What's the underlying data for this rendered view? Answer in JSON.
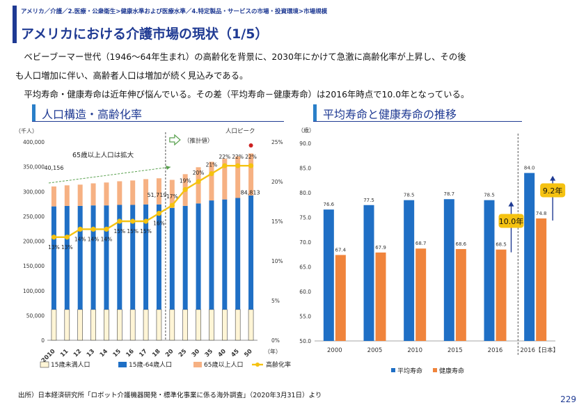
{
  "breadcrumb": "アメリカ／介護／2.医療・公衆衛生>健康水準および医療水準／4.特定製品・サービスの市場・投資環境>市場規模",
  "title": "アメリカにおける介護市場の現状（1/5）",
  "paragraphs": [
    "　ベビーブーマー世代（1946～64年生まれ）の高齢化を背景に、2030年にかけて急激に高齢化率が上昇し、その後",
    "も人口増加に伴い、高齢者人口は増加が続く見込みである。",
    "　平均寿命・健康寿命は近年伸び悩んでいる。その差（平均寿命－健康寿命）は2016年時点で10.0年となっている。"
  ],
  "section_left": "人口構造・高齢化率",
  "section_right": "平均寿命と健康寿命の推移",
  "colors": {
    "navy": "#1f3a93",
    "blue": "#1f6fc5",
    "orange": "#f0843c",
    "lightorange": "#f6b183",
    "cream": "#fff5d6",
    "yellow": "#f5c211",
    "red": "#cc1f1f"
  },
  "chart_data": [
    {
      "type": "bar",
      "subtype": "stacked-bar-with-line",
      "title": "人口構造・高齢化率",
      "y_left_label": "（千人）",
      "y_left_range": [
        0,
        400000
      ],
      "y_left_ticks": [
        "0",
        "50,000",
        "100,000",
        "150,000",
        "200,000",
        "250,000",
        "300,000",
        "350,000",
        "400,000"
      ],
      "y_right_range": [
        0,
        25
      ],
      "y_right_ticks": [
        "0%",
        "5%",
        "10%",
        "15%",
        "20%",
        "25%"
      ],
      "x_unit_label": "（年）",
      "categories": [
        "2010",
        "11",
        "12",
        "13",
        "14",
        "15",
        "16",
        "17",
        "18",
        "20",
        "25",
        "30",
        "35",
        "40",
        "45",
        "50"
      ],
      "series": [
        {
          "name": "15歳未満人口",
          "values": [
            62000,
            62000,
            62000,
            62000,
            62000,
            62000,
            62000,
            62000,
            62000,
            62000,
            62000,
            62000,
            62000,
            62000,
            62000,
            62000
          ]
        },
        {
          "name": "15歳-64歳人口",
          "values": [
            208000,
            209000,
            209000,
            210000,
            210000,
            211000,
            211000,
            212000,
            212000,
            205000,
            209000,
            214000,
            220000,
            222000,
            225000,
            230000
          ]
        },
        {
          "name": "65歳以上人口",
          "values": [
            40156,
            41500,
            42900,
            44500,
            46200,
            47700,
            49300,
            51000,
            52700,
            56500,
            64000,
            73000,
            78000,
            82000,
            84000,
            84813
          ]
        }
      ],
      "line": {
        "name": "高齢化率",
        "values": [
          13,
          13,
          14,
          14,
          14,
          15,
          15,
          15,
          16,
          17,
          19,
          20,
          21,
          22,
          22,
          22
        ]
      },
      "point_labels": [
        "13%",
        "13%",
        "14%",
        "14%",
        "14%",
        "15%",
        "15%",
        "15%",
        "16%",
        "17%",
        "19%",
        "20%",
        "21%",
        "22%",
        "22%",
        "22%"
      ],
      "annotations": {
        "first_elderly": "40,156",
        "peak_label": "人口ピーク",
        "peak_value": "84,813",
        "intermediate_value": "51,719",
        "growth_note": "65歳以上人口は拡大",
        "estimate_note": "（推計値）"
      },
      "legend": [
        "15歳未満人口",
        "15歳-64歳人口",
        "65歳以上人口",
        "高齢化率"
      ]
    },
    {
      "type": "bar",
      "title": "平均寿命と健康寿命の推移",
      "y_label": "（歳）",
      "y_range": [
        50,
        90
      ],
      "y_ticks": [
        "50.0",
        "55.0",
        "60.0",
        "65.0",
        "70.0",
        "75.0",
        "80.0",
        "85.0",
        "90.0"
      ],
      "categories": [
        "2000",
        "2005",
        "2010",
        "2015",
        "2016",
        "2016【日本】"
      ],
      "series": [
        {
          "name": "平均寿命",
          "values": [
            76.6,
            77.5,
            78.5,
            78.7,
            78.5,
            84.0
          ]
        },
        {
          "name": "健康寿命",
          "values": [
            67.4,
            67.9,
            68.7,
            68.6,
            68.5,
            74.8
          ]
        }
      ],
      "value_labels": {
        "平均寿命": [
          "76.6",
          "77.5",
          "78.5",
          "78.7",
          "78.5",
          "84.0"
        ],
        "健康寿命": [
          "67.4",
          "67.9",
          "68.7",
          "68.6",
          "68.5",
          "74.8"
        ]
      },
      "annotations": {
        "gap_us": "10.0年",
        "gap_japan": "9.2年"
      },
      "legend": [
        "平均寿命",
        "健康寿命"
      ]
    }
  ],
  "source": "出所）日本経済研究所「ロボット介護機器開発・標準化事業に係る海外調査」（2020年3月31日）より",
  "page_number": "229"
}
